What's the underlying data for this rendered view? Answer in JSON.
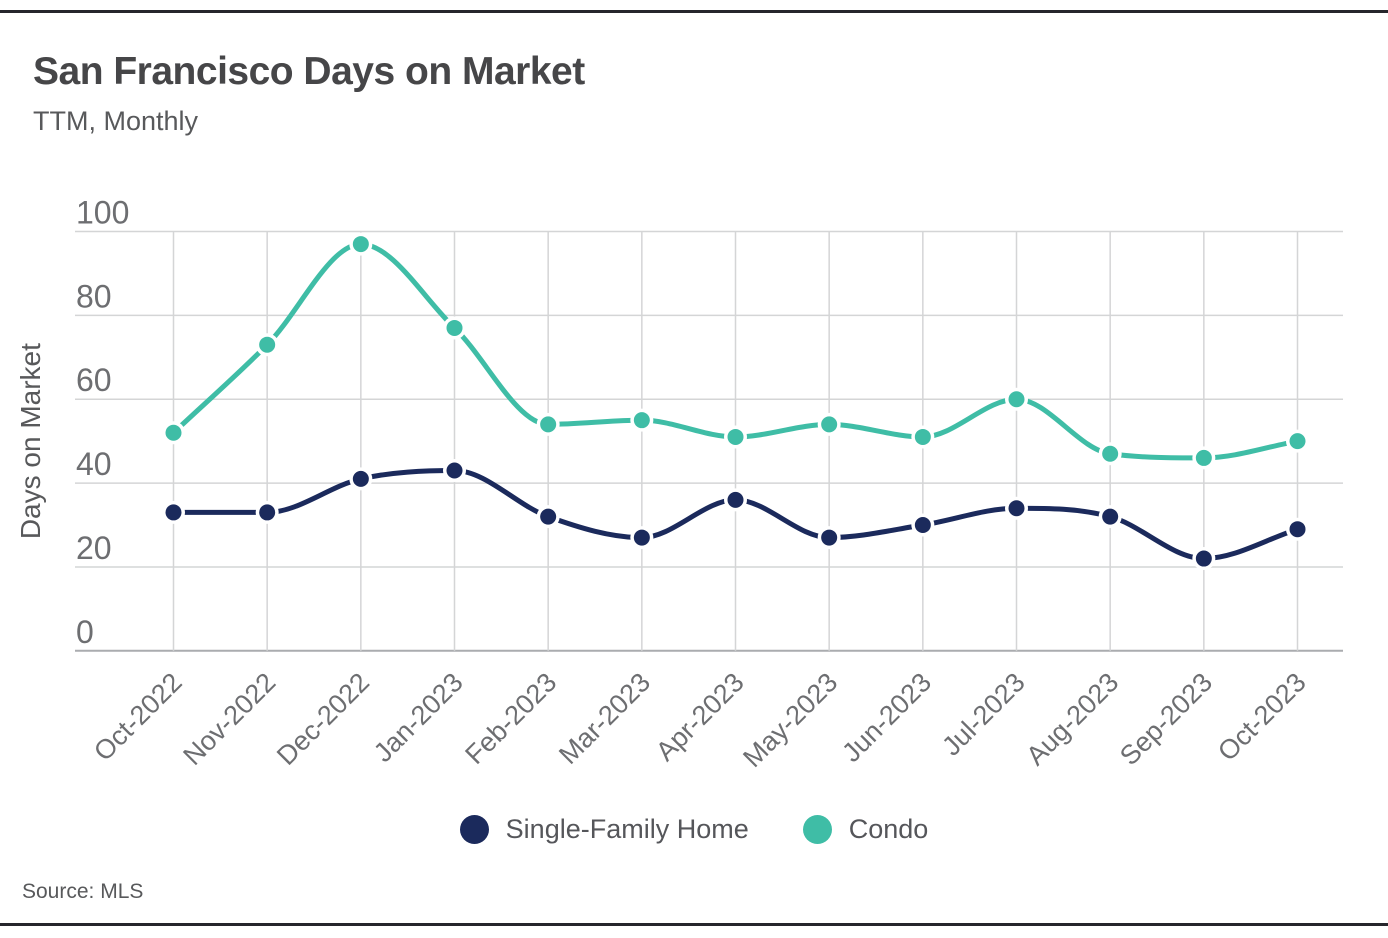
{
  "chart_data": {
    "type": "line",
    "title": "San Francisco Days on Market",
    "subtitle": "TTM, Monthly",
    "ylabel": "Days on Market",
    "source": "Source: MLS",
    "categories": [
      "Oct-2022",
      "Nov-2022",
      "Dec-2022",
      "Jan-2023",
      "Feb-2023",
      "Mar-2023",
      "Apr-2023",
      "May-2023",
      "Jun-2023",
      "Jul-2023",
      "Aug-2023",
      "Sep-2023",
      "Oct-2023"
    ],
    "series": [
      {
        "name": "Single-Family Home",
        "color": "#1b2a5c",
        "values": [
          33,
          33,
          41,
          43,
          32,
          27,
          36,
          27,
          30,
          34,
          32,
          22,
          29
        ]
      },
      {
        "name": "Condo",
        "color": "#3fbda6",
        "values": [
          52,
          73,
          97,
          77,
          54,
          55,
          51,
          54,
          51,
          60,
          47,
          46,
          50
        ]
      }
    ],
    "ylim": [
      0,
      100
    ],
    "yticks": [
      0,
      20,
      40,
      60,
      80,
      100
    ],
    "grid": true,
    "legend_position": "bottom"
  }
}
